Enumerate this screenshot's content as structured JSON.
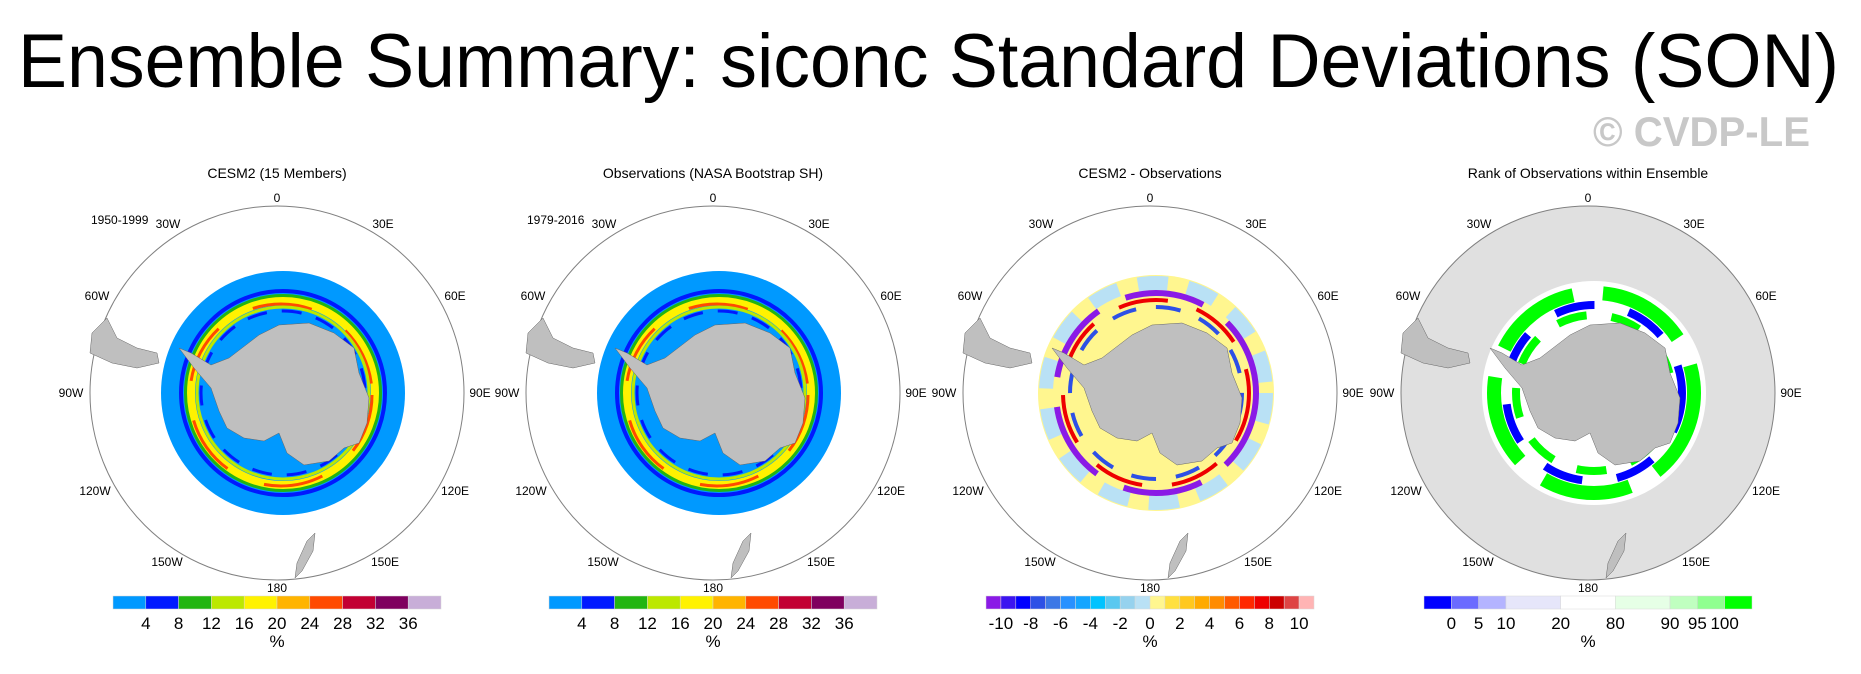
{
  "title": "Ensemble Summary: siconc Standard Deviations (SON)",
  "watermark": "© CVDP-LE",
  "colors": {
    "land": "#bfbfbf",
    "outline": "#808080",
    "panel1_title": "#6a8f5e",
    "rank_bg": "#e0e0e0"
  },
  "lon_labels": [
    "0",
    "30E",
    "60E",
    "90E",
    "120E",
    "150E",
    "180",
    "150W",
    "120W",
    "90W",
    "60W",
    "30W"
  ],
  "chart_data": [
    {
      "type": "heatmap",
      "projection": "south-polar-stereographic",
      "title": "CESM2 (15 Members)",
      "period": "1950-1999",
      "colorbar": {
        "unit": "%",
        "labels": [
          "4",
          "8",
          "12",
          "16",
          "20",
          "24",
          "28",
          "32",
          "36"
        ],
        "colors": [
          "#0099ff",
          "#0019ff",
          "#22b511",
          "#bce800",
          "#fff200",
          "#ffb400",
          "#ff4a00",
          "#c20033",
          "#7f005f",
          "#c8aed8"
        ],
        "widths": [
          1,
          1,
          1,
          1,
          1,
          1,
          1,
          1,
          1,
          1
        ]
      }
    },
    {
      "type": "heatmap",
      "projection": "south-polar-stereographic",
      "title": "Observations (NASA Bootstrap SH)",
      "period": "1979-2016",
      "colorbar": {
        "unit": "%",
        "labels": [
          "4",
          "8",
          "12",
          "16",
          "20",
          "24",
          "28",
          "32",
          "36"
        ],
        "colors": [
          "#0099ff",
          "#0019ff",
          "#22b511",
          "#bce800",
          "#fff200",
          "#ffb400",
          "#ff4a00",
          "#c20033",
          "#7f005f",
          "#c8aed8"
        ],
        "widths": [
          1,
          1,
          1,
          1,
          1,
          1,
          1,
          1,
          1,
          1
        ]
      }
    },
    {
      "type": "heatmap",
      "projection": "south-polar-stereographic",
      "title": "CESM2 - Observations",
      "colorbar": {
        "unit": "%",
        "labels": [
          "-10",
          "-8",
          "-6",
          "-4",
          "-2",
          "0",
          "2",
          "4",
          "6",
          "8",
          "10"
        ],
        "colors": [
          "#8a1ae6",
          "#3c14f0",
          "#0000ff",
          "#2d50e6",
          "#3c78e6",
          "#2891ff",
          "#14a5ff",
          "#00c3ff",
          "#5ac8f0",
          "#96d2ee",
          "#b9e1f5",
          "#fff68f",
          "#ffe040",
          "#ffc81e",
          "#ffaa00",
          "#ff8c00",
          "#ff5a00",
          "#ff2800",
          "#ee0000",
          "#cc0000",
          "#de4444",
          "#ffb4b4"
        ],
        "widths": [
          1,
          1,
          1,
          1,
          1,
          1,
          1,
          1,
          1,
          1,
          1,
          1,
          1,
          1,
          1,
          1,
          1,
          1,
          1,
          1,
          1,
          1
        ]
      }
    },
    {
      "type": "heatmap",
      "projection": "south-polar-stereographic",
      "title": "Rank of Observations within Ensemble",
      "colorbar": {
        "unit": "%",
        "labels": [
          "0",
          "5",
          "10",
          "20",
          "80",
          "90",
          "95",
          "100"
        ],
        "colors": [
          "#0000ff",
          "#6b6bff",
          "#b4b4ff",
          "#e6e6fa",
          "#ffffff",
          "#e6ffe6",
          "#c0ffc0",
          "#90ff90",
          "#00ff00"
        ],
        "widths": [
          1,
          1,
          1,
          2,
          2,
          2,
          1,
          1,
          1
        ]
      }
    }
  ]
}
